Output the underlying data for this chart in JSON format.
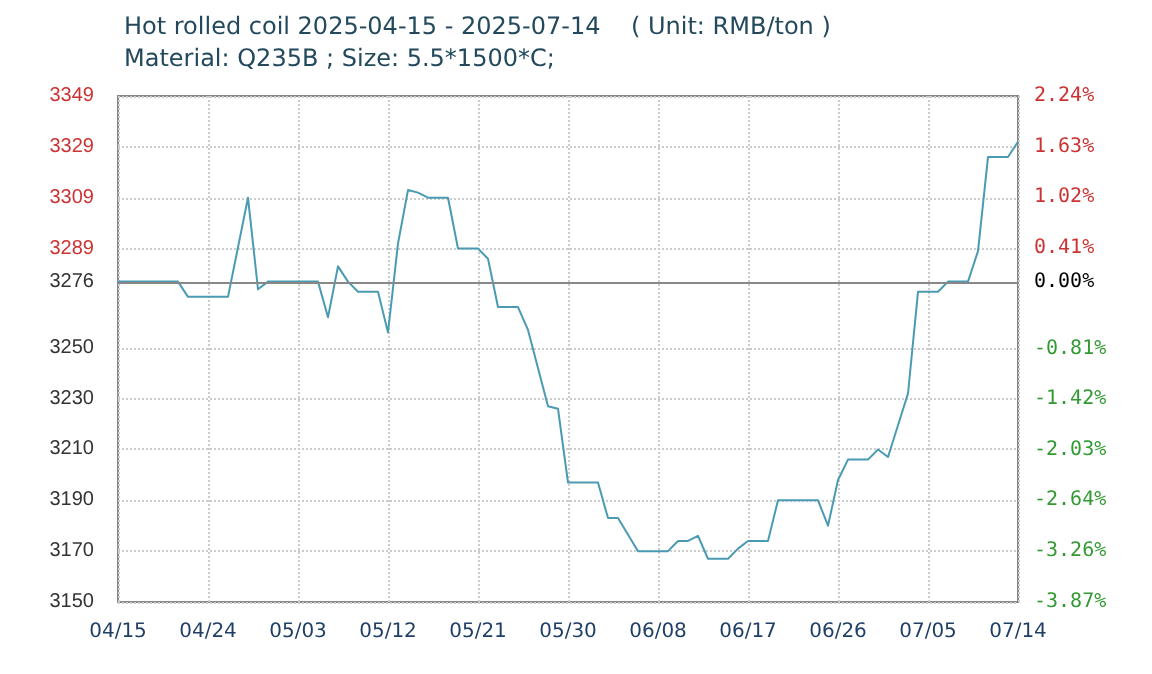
{
  "chart_data": {
    "type": "line",
    "title": "Hot rolled coil 2025-04-15 - 2025-07-14    ( Unit: RMB/ton )",
    "subtitle": "Material: Q235B ; Size: 5.5*1500*C;",
    "x": [
      "2025-04-15",
      "2025-04-21",
      "2025-04-22",
      "2025-04-26",
      "2025-04-28",
      "2025-04-29",
      "2025-04-30",
      "2025-05-05",
      "2025-05-06",
      "2025-05-07",
      "2025-05-08",
      "2025-05-09",
      "2025-05-11",
      "2025-05-12",
      "2025-05-13",
      "2025-05-14",
      "2025-05-15",
      "2025-05-16",
      "2025-05-18",
      "2025-05-19",
      "2025-05-21",
      "2025-05-22",
      "2025-05-23",
      "2025-05-25",
      "2025-05-26",
      "2025-05-28",
      "2025-05-29",
      "2025-05-30",
      "2025-06-02",
      "2025-06-03",
      "2025-06-04",
      "2025-06-06",
      "2025-06-09",
      "2025-06-10",
      "2025-06-11",
      "2025-06-12",
      "2025-06-13",
      "2025-06-15",
      "2025-06-16",
      "2025-06-17",
      "2025-06-19",
      "2025-06-20",
      "2025-06-24",
      "2025-06-25",
      "2025-06-26",
      "2025-06-27",
      "2025-06-29",
      "2025-06-30",
      "2025-07-01",
      "2025-07-03",
      "2025-07-04",
      "2025-07-06",
      "2025-07-07",
      "2025-07-09",
      "2025-07-10",
      "2025-07-11",
      "2025-07-13",
      "2025-07-14"
    ],
    "series": [
      {
        "color": "#4a9bb2",
        "values": [
          3276,
          3276,
          3270,
          3270,
          3309,
          3273,
          3276,
          3276,
          3262,
          3282,
          3276,
          3272,
          3272,
          3256,
          3291,
          3312,
          3311,
          3309,
          3309,
          3289,
          3289,
          3285,
          3266,
          3266,
          3257,
          3227,
          3226,
          3197,
          3197,
          3183,
          3183,
          3170,
          3170,
          3174,
          3174,
          3176,
          3167,
          3167,
          3171,
          3174,
          3174,
          3190,
          3190,
          3180,
          3198,
          3206,
          3206,
          3210,
          3207,
          3232,
          3272,
          3272,
          3276,
          3276,
          3288,
          3325,
          3325,
          3331
        ]
      }
    ],
    "xlim": [
      "2025-04-15",
      "2025-07-14"
    ],
    "xticks": [
      {
        "value": "2025-04-15",
        "label": "04/15"
      },
      {
        "value": "2025-04-24",
        "label": "04/24"
      },
      {
        "value": "2025-05-03",
        "label": "05/03"
      },
      {
        "value": "2025-05-12",
        "label": "05/12"
      },
      {
        "value": "2025-05-21",
        "label": "05/21"
      },
      {
        "value": "2025-05-30",
        "label": "05/30"
      },
      {
        "value": "2025-06-08",
        "label": "06/08"
      },
      {
        "value": "2025-06-17",
        "label": "06/17"
      },
      {
        "value": "2025-06-26",
        "label": "06/26"
      },
      {
        "value": "2025-07-05",
        "label": "07/05"
      },
      {
        "value": "2025-07-14",
        "label": "07/14"
      }
    ],
    "ylim": [
      3150,
      3349
    ],
    "yticks": [
      3150,
      3170,
      3190,
      3210,
      3230,
      3250,
      3276,
      3289,
      3309,
      3329,
      3349
    ],
    "y2lim": [
      -3.87,
      2.24
    ],
    "y2ticks": [
      {
        "value": -3.87,
        "label": "-3.87%"
      },
      {
        "value": -3.26,
        "label": "-3.26%"
      },
      {
        "value": -2.64,
        "label": "-2.64%"
      },
      {
        "value": -2.03,
        "label": "-2.03%"
      },
      {
        "value": -1.42,
        "label": "-1.42%"
      },
      {
        "value": -0.81,
        "label": "-0.81%"
      },
      {
        "value": 0,
        "label": "0.00%"
      },
      {
        "value": 0.41,
        "label": "0.41%"
      },
      {
        "value": 1.02,
        "label": "1.02%"
      },
      {
        "value": 1.63,
        "label": "1.63%"
      },
      {
        "value": 2.24,
        "label": "2.24%"
      }
    ],
    "ref_lines": [
      {
        "axis": "y",
        "value": 3276,
        "color": "#888888"
      }
    ],
    "grid": true,
    "marker": "none",
    "line_style": "solid"
  }
}
